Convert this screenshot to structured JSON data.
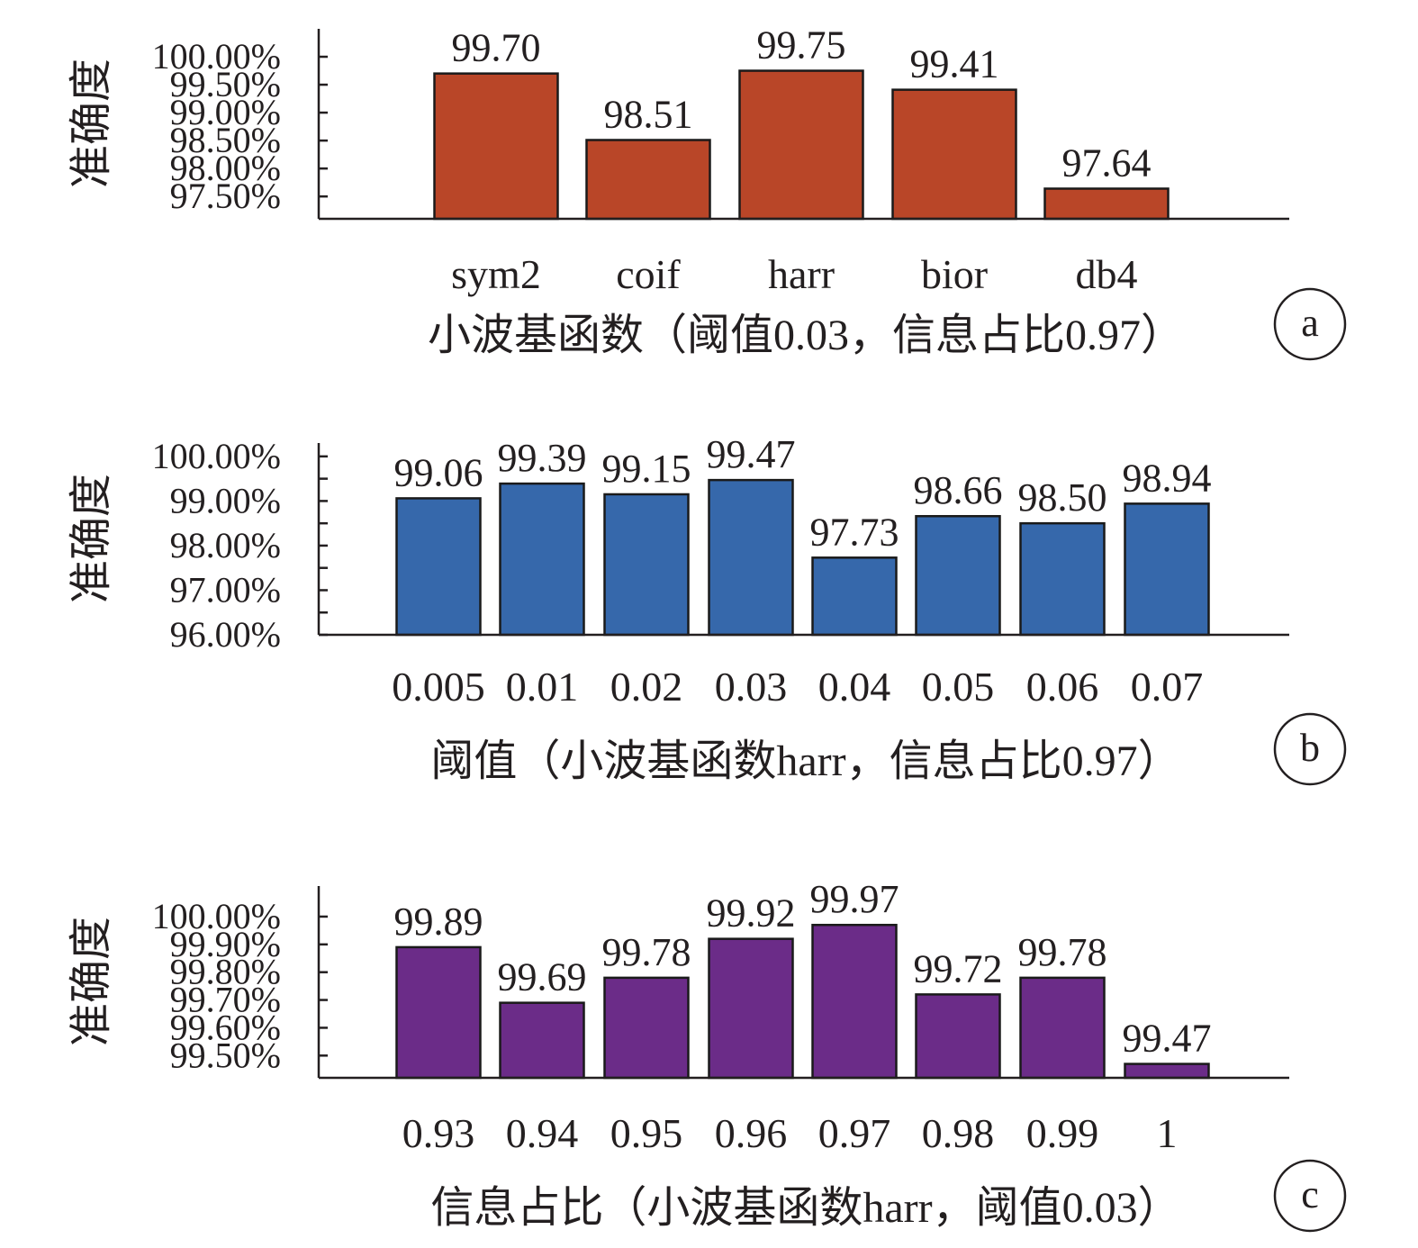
{
  "figure": {
    "colors": {
      "panel_a": "#b94628",
      "panel_b": "#3668ab",
      "panel_c": "#6b2c88",
      "axis": "#231f20"
    }
  },
  "chart_data": [
    {
      "id": "a",
      "type": "bar",
      "panel_label": "a",
      "ylabel": "准确度",
      "xlabel": "小波基函数（阈值0.03，信息占比0.97）",
      "categories": [
        "sym2",
        "coif",
        "harr",
        "bior",
        "db4"
      ],
      "values": [
        99.7,
        98.51,
        99.75,
        99.41,
        97.64
      ],
      "value_labels": [
        "99.70",
        "98.51",
        "99.75",
        "99.41",
        "97.64"
      ],
      "yticks": [
        97.5,
        98.0,
        98.5,
        99.0,
        99.5,
        100.0
      ],
      "ytick_labels": [
        "97.50%",
        "98.00%",
        "98.50%",
        "99.00%",
        "99.50%",
        "100.00%"
      ],
      "ylim": [
        97.1,
        100.5
      ],
      "grid": false,
      "legend": "none"
    },
    {
      "id": "b",
      "type": "bar",
      "panel_label": "b",
      "ylabel": "准确度",
      "xlabel": "阈值（小波基函数harr，信息占比0.97）",
      "categories": [
        "0.005",
        "0.01",
        "0.02",
        "0.03",
        "0.04",
        "0.05",
        "0.06",
        "0.07"
      ],
      "values": [
        99.06,
        99.39,
        99.15,
        99.47,
        97.73,
        98.66,
        98.5,
        98.94
      ],
      "value_labels": [
        "99.06",
        "99.39",
        "99.15",
        "99.47",
        "97.73",
        "98.66",
        "98.50",
        "98.94"
      ],
      "yticks": [
        96.0,
        97.0,
        98.0,
        99.0,
        100.0
      ],
      "ytick_labels": [
        "96.00%",
        "97.00%",
        "98.00%",
        "99.00%",
        "100.00%"
      ],
      "ylim": [
        96.0,
        100.3
      ],
      "grid": false,
      "legend": "none"
    },
    {
      "id": "c",
      "type": "bar",
      "panel_label": "c",
      "ylabel": "准确度",
      "xlabel": "信息占比（小波基函数harr，阈值0.03）",
      "categories": [
        "0.93",
        "0.94",
        "0.95",
        "0.96",
        "0.97",
        "0.98",
        "0.99",
        "1"
      ],
      "values": [
        99.89,
        99.69,
        99.78,
        99.92,
        99.97,
        99.72,
        99.78,
        99.47
      ],
      "value_labels": [
        "99.89",
        "99.69",
        "99.78",
        "99.92",
        "99.97",
        "99.72",
        "99.78",
        "99.47"
      ],
      "yticks": [
        99.5,
        99.6,
        99.7,
        99.8,
        99.9,
        100.0
      ],
      "ytick_labels": [
        "99.50%",
        "99.60%",
        "99.70%",
        "99.80%",
        "99.90%",
        "100.00%"
      ],
      "ylim": [
        99.42,
        100.11
      ],
      "grid": false,
      "legend": "none"
    }
  ]
}
